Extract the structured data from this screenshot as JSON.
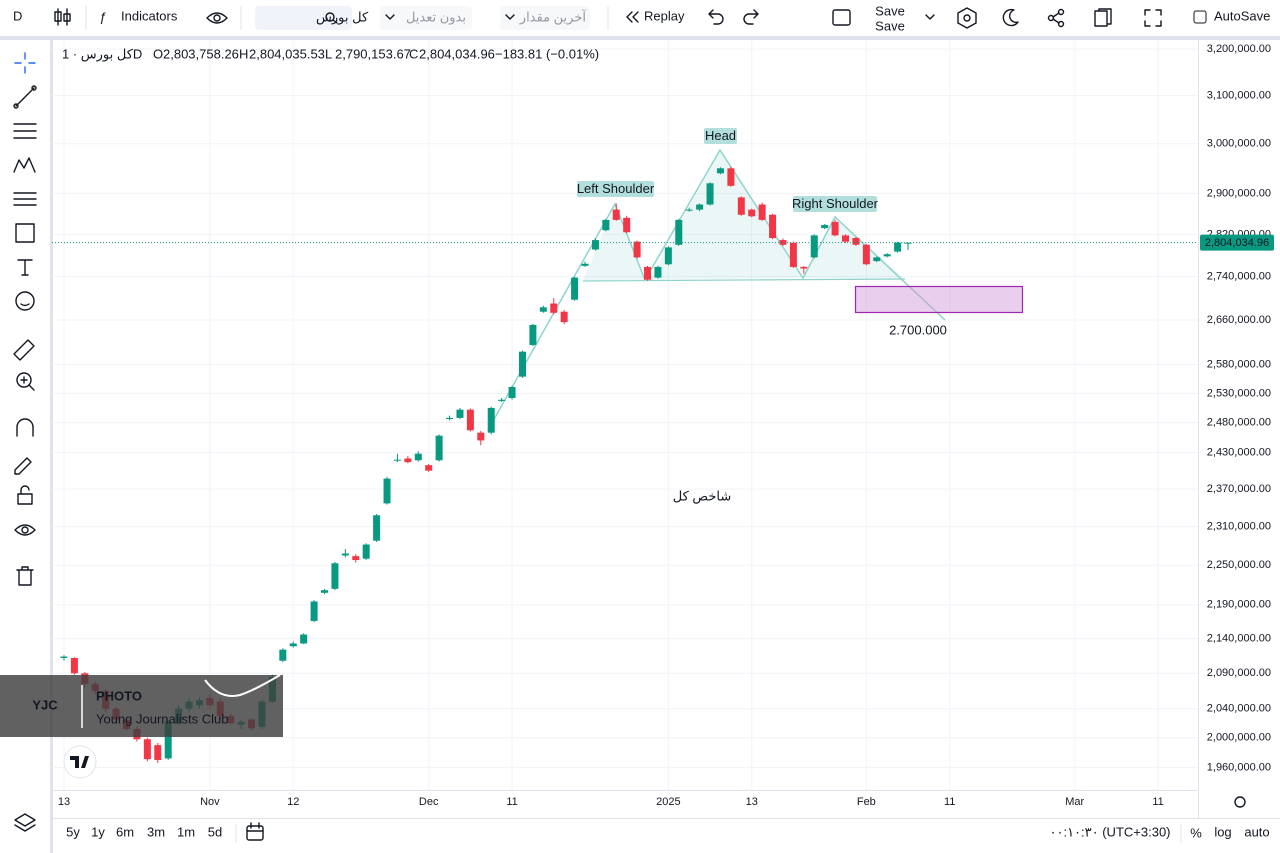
{
  "toolbar": {
    "symbol_short": "D",
    "indicators": "Indicators",
    "symbol": "کل بورس",
    "adjustment": "بدون تعدیل",
    "price_source": "آخرین مقدار",
    "replay": "Replay",
    "save": "Save",
    "save_sub": "Save",
    "autosave": "AutoSave"
  },
  "legend_header": {
    "symbol": "کل بورس · 1D",
    "items": [
      {
        "key": "O",
        "value": "2,803,758.26"
      },
      {
        "key": "H",
        "value": "2,804,035.53"
      },
      {
        "key": "L",
        "value": "2,790,153.67"
      },
      {
        "key": "C",
        "value": "2,804,034.96"
      }
    ],
    "change": "−183.81 (−0.01%)"
  },
  "chart_data": {
    "type": "candlestick",
    "log_scale": true,
    "grid": true,
    "up_color": "#089981",
    "down_color": "#f23645",
    "categories": [
      "13",
      null,
      null,
      null,
      null,
      null,
      null,
      null,
      null,
      null,
      null,
      null,
      null,
      null,
      "Nov",
      null,
      null,
      null,
      null,
      null,
      null,
      null,
      "12",
      null,
      null,
      null,
      null,
      null,
      null,
      null,
      null,
      null,
      null,
      null,
      null,
      "Dec",
      null,
      null,
      null,
      null,
      null,
      null,
      null,
      "11",
      null,
      null,
      null,
      null,
      null,
      null,
      null,
      null,
      null,
      null,
      null,
      null,
      null,
      null,
      "2025",
      null,
      null,
      null,
      null,
      null,
      null,
      null,
      "13",
      null,
      null,
      null,
      null,
      null,
      null,
      null,
      null,
      null,
      null,
      "Feb",
      null,
      null,
      null,
      null,
      null,
      null,
      null,
      "11",
      null,
      null,
      null,
      null,
      null,
      null,
      null,
      null,
      null,
      null,
      null,
      "Mar",
      null,
      null,
      null,
      null,
      null,
      null,
      null,
      "11"
    ],
    "open": [
      2112000,
      2112000,
      2090000,
      2075000,
      2065000,
      2040000,
      2025000,
      2012000,
      1998000,
      1990000,
      1972000,
      2020000,
      2040000,
      2045000,
      2055000,
      2050000,
      2030000,
      2018000,
      2025000,
      2015000,
      2050000,
      2108000,
      2129000,
      2133000,
      2166000,
      2208000,
      2214000,
      2265000,
      2264000,
      2260000,
      2288000,
      2347000,
      2417000,
      2420000,
      2417000,
      2409000,
      2417000,
      2486000,
      2488000,
      2502000,
      2463000,
      2463000,
      2517000,
      2522000,
      2559000,
      2615000,
      2675000,
      2690000,
      2675000,
      2697000,
      2760000,
      2791000,
      2828000,
      2868000,
      2852000,
      2806000,
      2758000,
      2738000,
      2763000,
      2800000,
      2866000,
      2868000,
      2878000,
      2940000,
      2950000,
      2892000,
      2868000,
      2878000,
      2858000,
      2809000,
      2804000,
      2758000,
      2776000,
      2832000,
      2844000,
      2818000,
      2813000,
      2800000,
      2769000,
      2778000,
      2787000,
      2803758.26,
      null,
      null,
      null,
      null,
      null,
      null,
      null,
      null,
      null,
      null,
      null,
      null,
      null,
      null,
      null,
      null,
      null,
      null,
      null,
      null,
      null,
      null,
      null,
      null
    ],
    "high": [
      2116000,
      2113000,
      2092000,
      2078000,
      2068000,
      2043000,
      2028000,
      2015000,
      2000000,
      1993000,
      2025000,
      2045000,
      2055000,
      2056000,
      2060000,
      2055000,
      2033000,
      2025000,
      2027000,
      2052000,
      2088000,
      2126000,
      2136000,
      2148000,
      2197000,
      2214000,
      2255000,
      2275000,
      2267000,
      2284000,
      2330000,
      2390000,
      2428000,
      2424000,
      2432000,
      2411000,
      2460000,
      2492000,
      2505000,
      2504000,
      2466000,
      2507000,
      2522000,
      2543000,
      2605000,
      2653000,
      2686000,
      2700000,
      2678000,
      2740000,
      2768000,
      2812000,
      2850000,
      2880000,
      2856000,
      2808000,
      2760000,
      2760000,
      2797000,
      2850000,
      2872000,
      2880000,
      2922000,
      2952000,
      2953000,
      2894000,
      2870000,
      2882000,
      2860000,
      2812000,
      2806000,
      2760000,
      2820000,
      2840000,
      2848000,
      2820000,
      2815000,
      2802000,
      2778000,
      2784000,
      2806000,
      2804035.53,
      null,
      null,
      null,
      null,
      null,
      null,
      null,
      null,
      null,
      null,
      null,
      null,
      null,
      null,
      null,
      null,
      null,
      null,
      null,
      null,
      null,
      null,
      null,
      null
    ],
    "low": [
      2108000,
      2088000,
      2070000,
      2060000,
      2035000,
      2022000,
      2010000,
      1995000,
      1968000,
      1966000,
      1970000,
      2018000,
      2035000,
      2040000,
      2040000,
      2025000,
      2018000,
      2012000,
      2010000,
      2012000,
      2048000,
      2106000,
      2127000,
      2132000,
      2164000,
      2206000,
      2212000,
      2262000,
      2254000,
      2258000,
      2286000,
      2345000,
      2414000,
      2412000,
      2415000,
      2398000,
      2415000,
      2484000,
      2486000,
      2465000,
      2442000,
      2460000,
      2515000,
      2519000,
      2557000,
      2613000,
      2673000,
      2670000,
      2652000,
      2695000,
      2758000,
      2789000,
      2826000,
      2846000,
      2822000,
      2774000,
      2732000,
      2736000,
      2761000,
      2798000,
      2864000,
      2865000,
      2876000,
      2938000,
      2913000,
      2856000,
      2853000,
      2846000,
      2811000,
      2798000,
      2756000,
      2745000,
      2774000,
      2830000,
      2816000,
      2804000,
      2798000,
      2761000,
      2767000,
      2776000,
      2785000,
      2790153.67,
      null,
      null,
      null,
      null,
      null,
      null,
      null,
      null,
      null,
      null,
      null,
      null,
      null,
      null,
      null,
      null,
      null,
      null,
      null,
      null,
      null,
      null,
      null,
      null
    ],
    "close": [
      2114000,
      2090000,
      2075000,
      2065000,
      2040000,
      2025000,
      2012000,
      1998000,
      1971000,
      1970000,
      2022000,
      2040000,
      2050000,
      2052000,
      2045000,
      2030000,
      2020000,
      2022000,
      2013000,
      2050000,
      2085000,
      2124000,
      2133000,
      2146000,
      2195000,
      2212000,
      2253000,
      2268000,
      2258000,
      2282000,
      2328000,
      2387000,
      2418000,
      2414000,
      2428000,
      2400000,
      2458000,
      2488000,
      2502000,
      2467000,
      2450000,
      2505000,
      2519000,
      2541000,
      2603000,
      2651000,
      2683000,
      2673000,
      2656000,
      2738000,
      2764000,
      2809000,
      2848000,
      2848000,
      2824000,
      2776000,
      2734000,
      2758000,
      2795000,
      2848000,
      2868000,
      2878000,
      2920000,
      2950000,
      2915000,
      2858000,
      2855000,
      2848000,
      2813000,
      2800000,
      2758000,
      2755000,
      2818000,
      2838000,
      2818000,
      2806000,
      2800000,
      2763000,
      2776000,
      2782000,
      2804219,
      2804034.96,
      null,
      null,
      null,
      null,
      null,
      null,
      null,
      null,
      null,
      null,
      null,
      null,
      null,
      null,
      null,
      null,
      null,
      null,
      null,
      null,
      null,
      null,
      null,
      null
    ],
    "ylim": [
      1930000,
      3220000
    ],
    "yticks": [
      {
        "value": 3200000,
        "label": "3,200,000.00"
      },
      {
        "value": 3100000,
        "label": "3,100,000.00"
      },
      {
        "value": 3000000,
        "label": "3,000,000.00"
      },
      {
        "value": 2900000,
        "label": "2,900,000.00"
      },
      {
        "value": 2820000,
        "label": "2,820,000.00"
      },
      {
        "value": 2740000,
        "label": "2,740,000.00"
      },
      {
        "value": 2660000,
        "label": "2,660,000.00"
      },
      {
        "value": 2580000,
        "label": "2,580,000.00"
      },
      {
        "value": 2530000,
        "label": "2,530,000.00"
      },
      {
        "value": 2480000,
        "label": "2,480,000.00"
      },
      {
        "value": 2430000,
        "label": "2,430,000.00"
      },
      {
        "value": 2370000,
        "label": "2,370,000.00"
      },
      {
        "value": 2310000,
        "label": "2,310,000.00"
      },
      {
        "value": 2250000,
        "label": "2,250,000.00"
      },
      {
        "value": 2190000,
        "label": "2,190,000.00"
      },
      {
        "value": 2140000,
        "label": "2,140,000.00"
      },
      {
        "value": 2090000,
        "label": "2,090,000.00"
      },
      {
        "value": 2040000,
        "label": "2,040,000.00"
      },
      {
        "value": 2000000,
        "label": "2,000,000.00"
      },
      {
        "value": 1960000,
        "label": "1,960,000.00"
      }
    ],
    "last_price": {
      "value": 2804034.96,
      "label": "2,804,034.96"
    },
    "annotations": {
      "left_shoulder": "Left Shoulder",
      "head": "Head",
      "right_shoulder": "Right Shoulder",
      "target": "2.700.000",
      "caption": "شاخص کل"
    }
  },
  "bottom_bar": {
    "ranges": [
      "5y",
      "1y",
      "6m",
      "3m",
      "1m",
      "5d"
    ],
    "time": "۰۰:۱۰:۳۰ (UTC+3:30)",
    "percent": "%",
    "log": "log",
    "auto": "auto"
  },
  "watermark": {
    "brand": "YJC",
    "kind": "PHOTO",
    "name": "Young Journalists Club"
  }
}
